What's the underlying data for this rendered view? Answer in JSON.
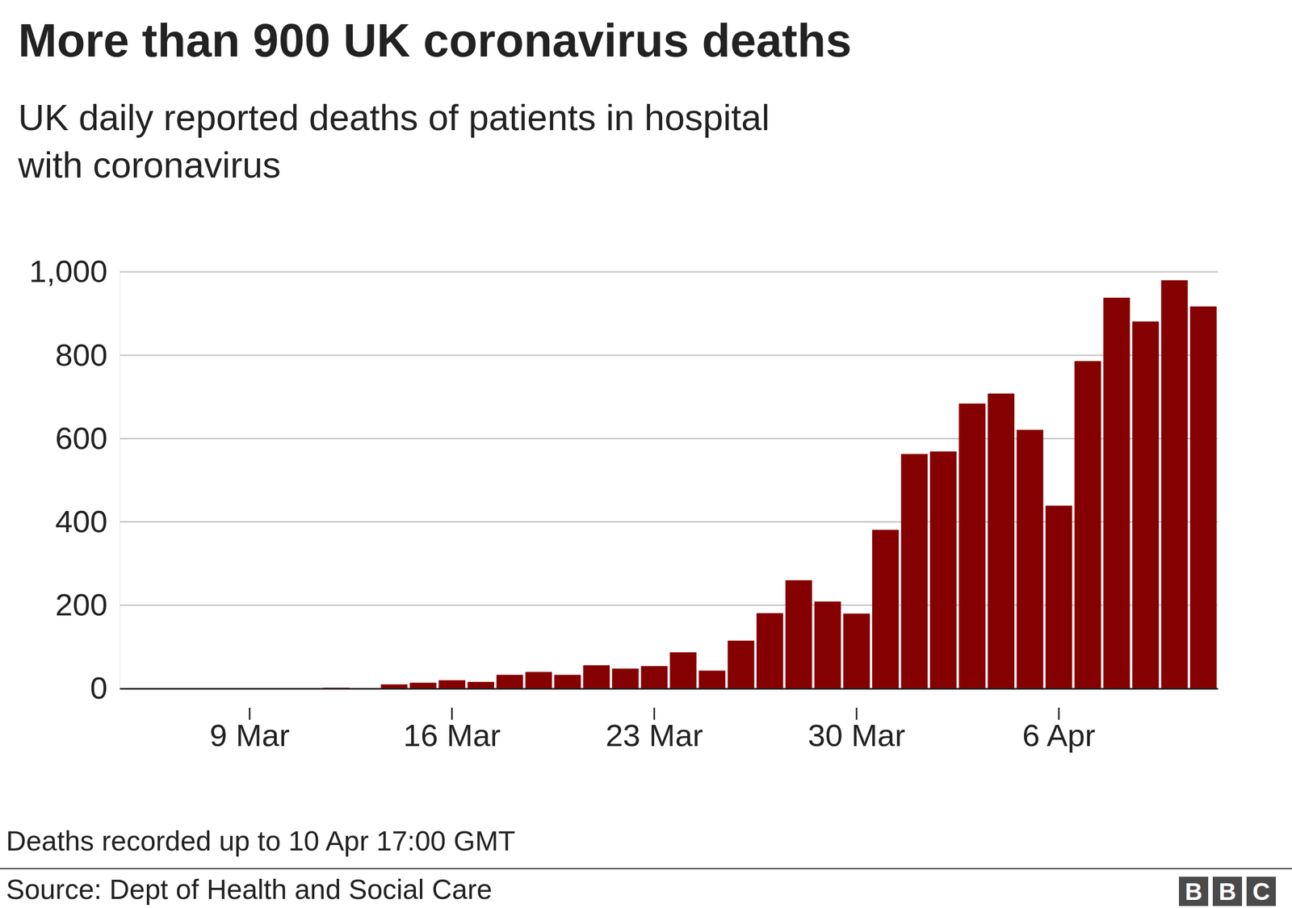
{
  "chart_data": {
    "type": "bar",
    "title": "More than 900 UK coronavirus deaths",
    "subtitle": [
      "UK daily reported deaths of patients in hospital",
      "with coronavirus"
    ],
    "categories": [
      null,
      null,
      null,
      null,
      "9 Mar",
      null,
      null,
      null,
      null,
      null,
      null,
      "16 Mar",
      null,
      null,
      null,
      null,
      null,
      null,
      "23 Mar",
      null,
      null,
      null,
      null,
      null,
      null,
      "30 Mar",
      null,
      null,
      null,
      null,
      null,
      null,
      "6 Apr",
      null,
      null,
      null,
      null,
      null
    ],
    "values": [
      1,
      0,
      1,
      0,
      1,
      1,
      1,
      2,
      1,
      10,
      14,
      20,
      16,
      33,
      40,
      33,
      56,
      48,
      54,
      87,
      43,
      115,
      181,
      260,
      209,
      180,
      381,
      563,
      569,
      684,
      708,
      621,
      439,
      786,
      938,
      881,
      980,
      917
    ],
    "color": "#850000",
    "ylim": [
      0,
      1000
    ],
    "yticks": [
      0,
      200,
      400,
      600,
      800,
      {
        "value": 1000,
        "label": "1,000"
      }
    ],
    "grid": true,
    "footnote": "Deaths recorded up to 10 Apr 17:00 GMT",
    "source": "Source: Dept of Health and Social Care",
    "logo": [
      "B",
      "B",
      "C"
    ]
  }
}
